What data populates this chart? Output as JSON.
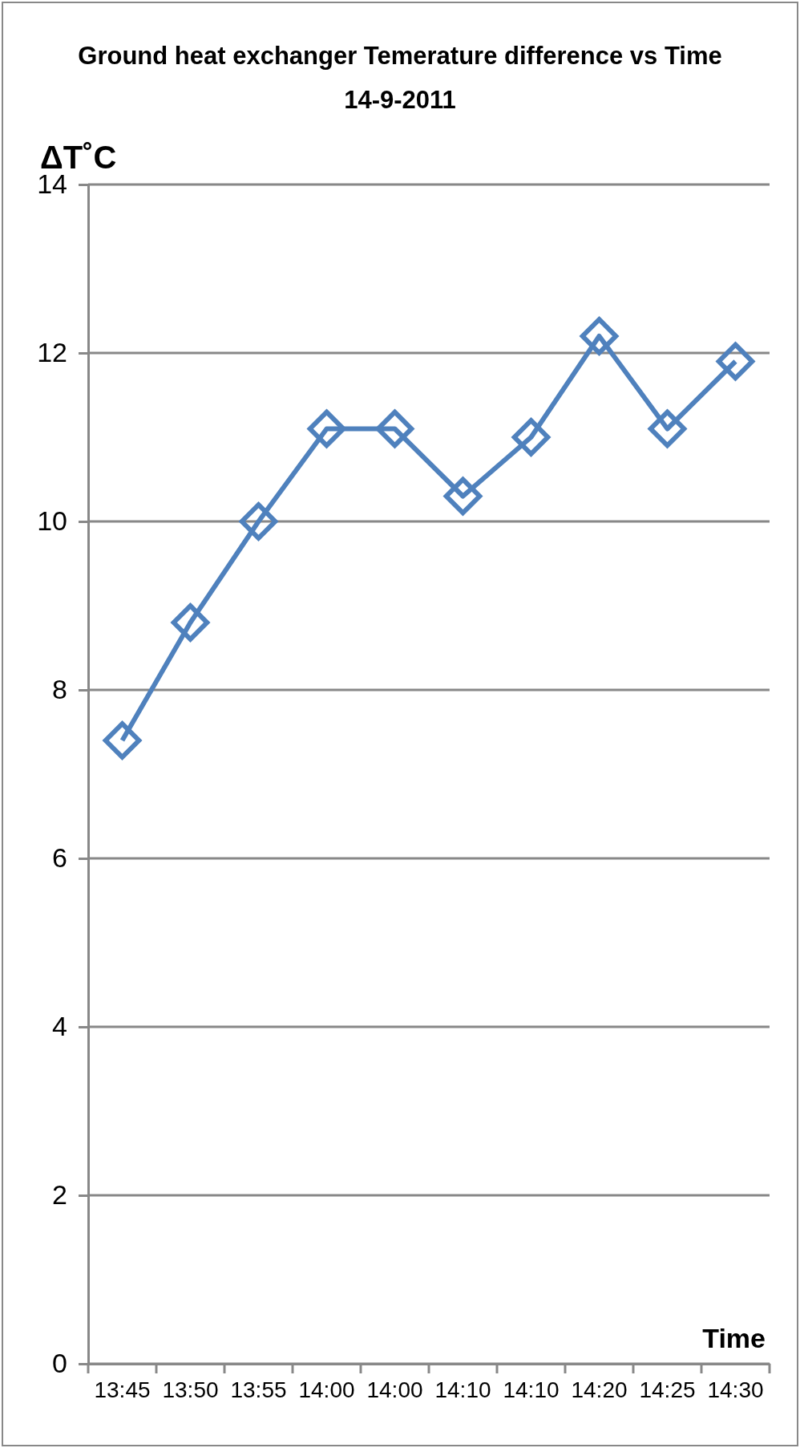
{
  "chart_data": {
    "type": "line",
    "title": "Ground heat exchanger Temerature difference vs Time",
    "subtitle": "14-9-2011",
    "xlabel": "Time",
    "ylabel": "ΔT˚C",
    "categories": [
      "13:45",
      "13:50",
      "13:55",
      "14:00",
      "14:00",
      "14:10",
      "14:10",
      "14:20",
      "14:25",
      "14:30"
    ],
    "series": [
      {
        "color": "#4f81bd",
        "values": [
          7.4,
          8.8,
          10.0,
          11.1,
          11.1,
          10.3,
          11.0,
          12.2,
          11.1,
          11.9
        ]
      }
    ],
    "ylim": [
      0,
      14
    ],
    "yticks": [
      0,
      2,
      4,
      6,
      8,
      10,
      12,
      14
    ],
    "grid": "y",
    "marker": "diamond",
    "line_style": "solid"
  }
}
